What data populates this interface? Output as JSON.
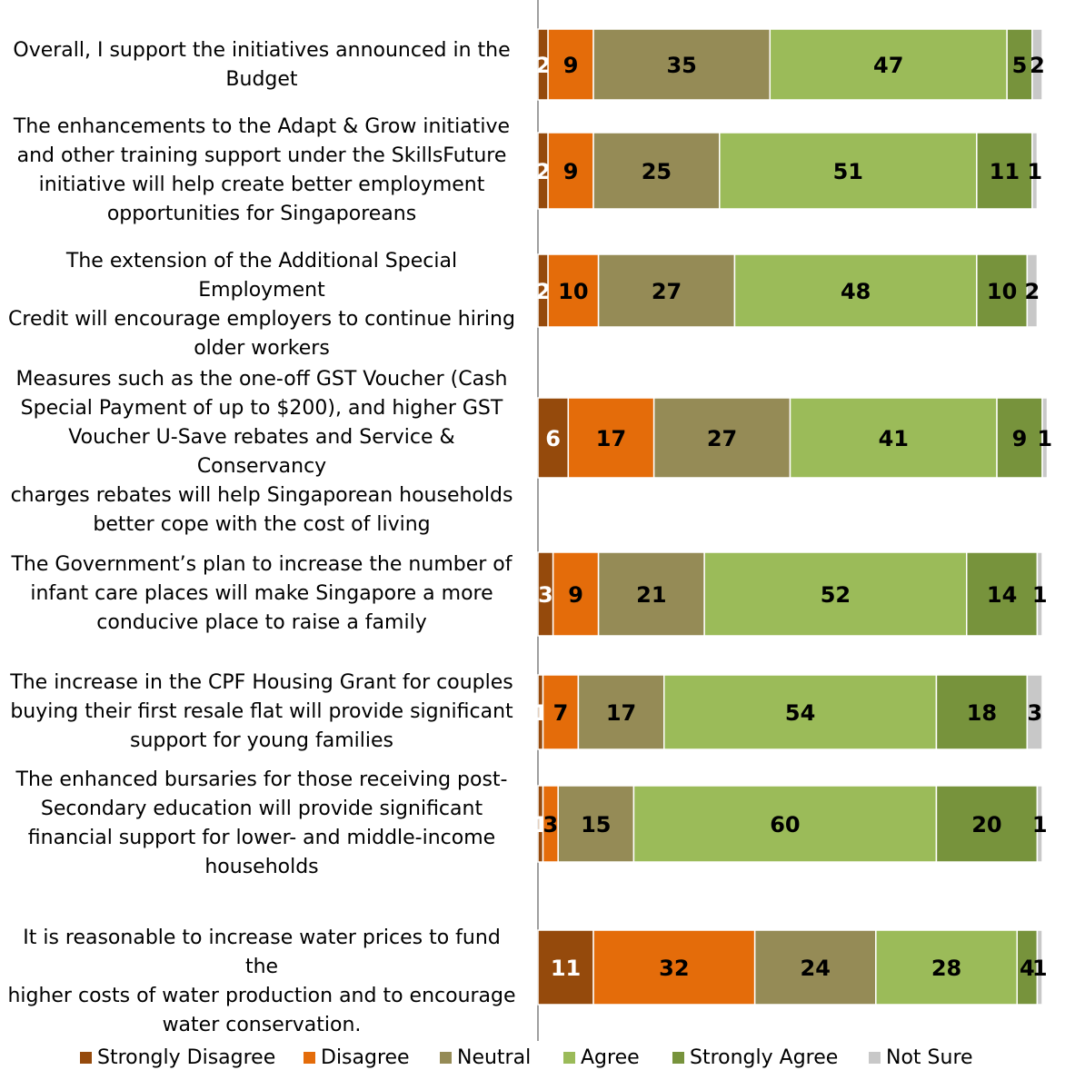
{
  "chart_data": {
    "type": "bar",
    "orientation": "horizontal",
    "stacked": true,
    "title": "",
    "xlabel": "",
    "ylabel": "",
    "xlim": [
      0,
      100
    ],
    "grid": false,
    "legend_position": "bottom",
    "categories": [
      "Overall, I support the initiatives announced in the Budget",
      "The enhancements to the Adapt & Grow initiative and other training support under the SkillsFuture initiative will help create better employment opportunities for Singaporeans",
      "The extension of the Additional Special Employment Credit will encourage employers to continue hiring older workers",
      "Measures such as the one-off GST Voucher (Cash Special Payment of up to $200), and higher GST Voucher U-Save rebates and Service & Conservancy charges rebates will help Singaporean households better cope with the cost of living",
      "The Government’s plan to increase the number of infant care places will make Singapore a more conducive place to raise a family",
      "The increase in the CPF Housing Grant for couples buying their first resale flat will provide significant support for young families",
      "The enhanced bursaries for those receiving post-Secondary education will provide significant financial support for lower- and middle-income households",
      "It is reasonable to increase water prices to fund the higher costs of water production and to encourage water conservation."
    ],
    "series": [
      {
        "name": "Strongly Disagree",
        "color": "#954a0c",
        "values": [
          2,
          2,
          2,
          6,
          3,
          1,
          1,
          11
        ]
      },
      {
        "name": "Disagree",
        "color": "#e46c0a",
        "values": [
          9,
          9,
          10,
          17,
          9,
          7,
          3,
          32
        ]
      },
      {
        "name": "Neutral",
        "color": "#958b56",
        "values": [
          35,
          25,
          27,
          27,
          21,
          17,
          15,
          24
        ]
      },
      {
        "name": "Agree",
        "color": "#9bbb59",
        "values": [
          47,
          51,
          48,
          41,
          52,
          54,
          60,
          28
        ]
      },
      {
        "name": "Strongly Agree",
        "color": "#77933c",
        "values": [
          5,
          11,
          10,
          9,
          14,
          18,
          20,
          4
        ]
      },
      {
        "name": "Not Sure",
        "color": "#c8c8c8",
        "values": [
          2,
          1,
          2,
          1,
          1,
          3,
          1,
          1
        ]
      }
    ]
  }
}
